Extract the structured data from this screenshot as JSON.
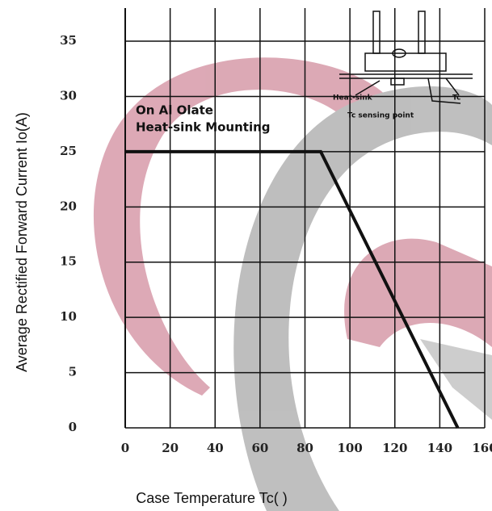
{
  "chart_data": {
    "type": "line",
    "xlabel": "Case Temperature Tc(    )",
    "ylabel": "Average Rectified Forward Current Io(A)",
    "annotations": [
      "On Al Olate",
      "Heat-sink Mounting",
      "Heat-sink",
      "Tc",
      "Tc sensing point"
    ],
    "series": [
      {
        "name": "Io",
        "color": "#111111",
        "x": [
          0,
          87,
          148
        ],
        "values": [
          25,
          25,
          0
        ]
      }
    ],
    "xlim": [
      0,
      160
    ],
    "xticks": [
      0,
      20,
      40,
      60,
      80,
      100,
      120,
      140,
      160
    ],
    "ylim": [
      0,
      38
    ],
    "yticks": [
      0,
      5,
      10,
      15,
      20,
      25,
      30,
      35
    ],
    "grid": true
  }
}
